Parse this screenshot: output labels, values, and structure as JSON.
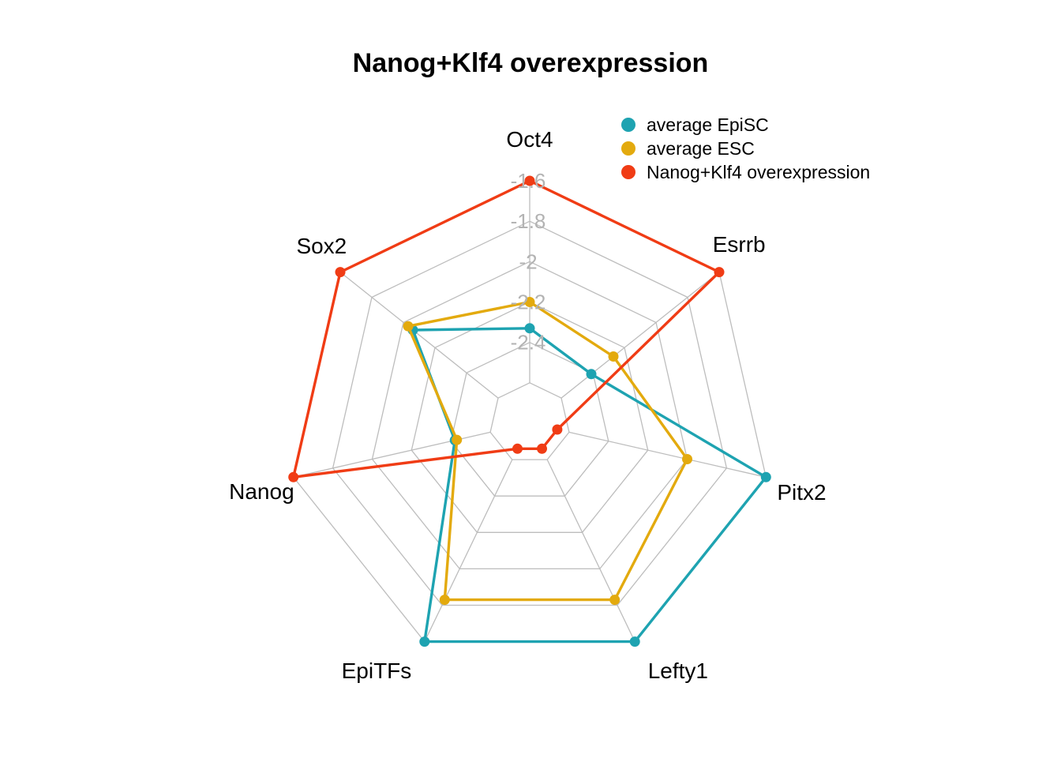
{
  "chart_data": {
    "type": "radar",
    "title": "Nanog+Klf4 overexpression",
    "axes": [
      "Oct4",
      "Esrrb",
      "Pitx2",
      "Lefty1",
      "EpiTFs",
      "Nanog",
      "Sox2"
    ],
    "tick_labels": [
      "-1.6",
      "-1.8",
      "-2",
      "-2.2",
      "-2.4"
    ],
    "rlim": [
      -2.8,
      -1.6
    ],
    "grid": true,
    "legend_position": "top-right",
    "series": [
      {
        "name": "average EpiSC",
        "color": "#1ea3b1",
        "values": [
          -2.33,
          -2.41,
          -1.6,
          -1.6,
          -1.6,
          -2.42,
          -2.06
        ]
      },
      {
        "name": "average ESC",
        "color": "#e3aa0e",
        "values": [
          -2.2,
          -2.27,
          -2.0,
          -1.83,
          -1.83,
          -2.43,
          -2.03
        ]
      },
      {
        "name": "Nanog+Klf4 overexpression",
        "color": "#f03c15",
        "values": [
          -1.6,
          -1.6,
          -2.66,
          -2.66,
          -2.66,
          -1.6,
          -1.6
        ]
      }
    ]
  }
}
